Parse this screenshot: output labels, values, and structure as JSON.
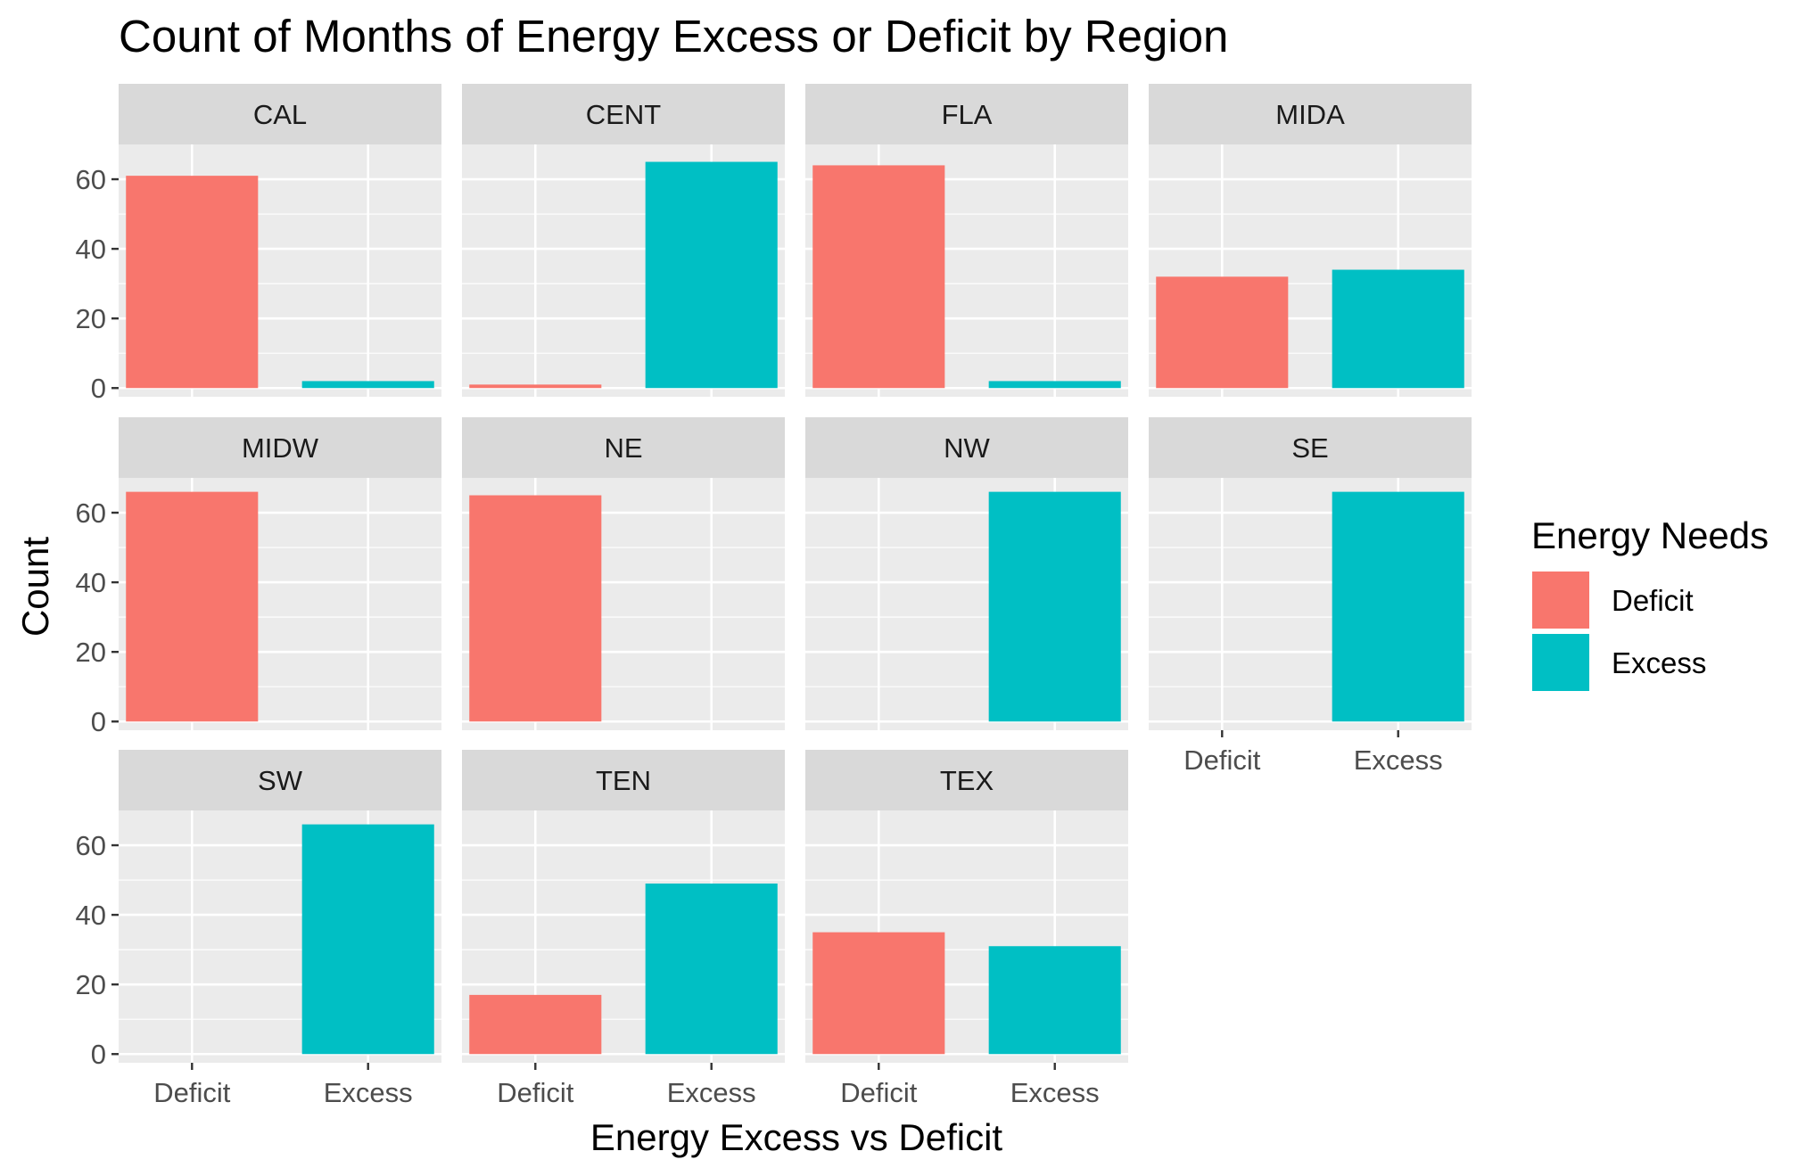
{
  "chart_data": {
    "type": "bar",
    "title": "Count of Months of Energy Excess or Deficit by Region",
    "xlabel": "Energy Excess vs Deficit",
    "ylabel": "Count",
    "categories": [
      "Deficit",
      "Excess"
    ],
    "y_ticks": [
      0,
      20,
      40,
      60
    ],
    "ylim": [
      -2.5,
      70
    ],
    "grid": true,
    "legend": {
      "title": "Energy Needs",
      "position": "right",
      "entries": [
        {
          "label": "Deficit",
          "color": "#F8766D"
        },
        {
          "label": "Excess",
          "color": "#00BFC4"
        }
      ]
    },
    "colors": {
      "Deficit": "#F8766D",
      "Excess": "#00BFC4",
      "panel_background": "#EBEBEB",
      "strip_background": "#D9D9D9",
      "grid_major": "#FFFFFF"
    },
    "facets": [
      {
        "name": "CAL",
        "values": [
          61,
          2
        ]
      },
      {
        "name": "CENT",
        "values": [
          1,
          65
        ]
      },
      {
        "name": "FLA",
        "values": [
          64,
          2
        ]
      },
      {
        "name": "MIDA",
        "values": [
          32,
          34
        ]
      },
      {
        "name": "MIDW",
        "values": [
          66,
          0
        ]
      },
      {
        "name": "NE",
        "values": [
          65,
          0
        ]
      },
      {
        "name": "NW",
        "values": [
          0,
          66
        ]
      },
      {
        "name": "SE",
        "values": [
          0,
          66
        ]
      },
      {
        "name": "SW",
        "values": [
          0,
          66
        ]
      },
      {
        "name": "TEN",
        "values": [
          17,
          49
        ]
      },
      {
        "name": "TEX",
        "values": [
          35,
          31
        ]
      }
    ]
  }
}
